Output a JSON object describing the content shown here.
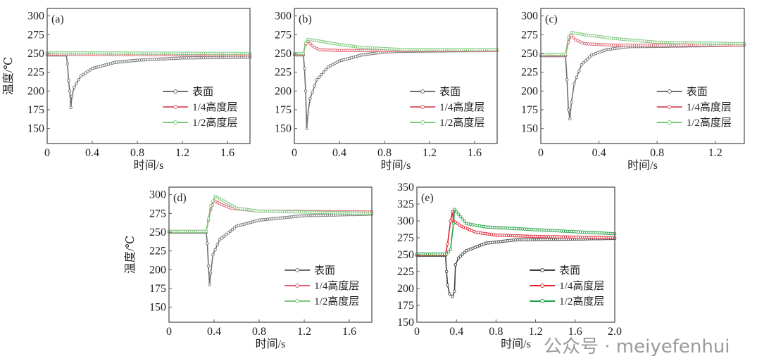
{
  "watermark": "公众号 · meiyefenhui",
  "chart_data": [
    {
      "type": "line",
      "panel": "(a)",
      "xlabel": "时间/s",
      "ylabel": "温度/℃",
      "xlim": [
        0,
        1.8
      ],
      "ylim": [
        130,
        310
      ],
      "xticks": [
        "0",
        "0.4",
        "0.8",
        "1.2",
        "1.6"
      ],
      "yticks": [
        "150",
        "175",
        "200",
        "225",
        "250",
        "275",
        "300"
      ],
      "series": [
        {
          "name": "表面",
          "color": "#6f6f6f",
          "points": [
            [
              0,
              248
            ],
            [
              0.17,
              248
            ],
            [
              0.18,
              236
            ],
            [
              0.19,
              214
            ],
            [
              0.2,
              200
            ],
            [
              0.21,
              178
            ],
            [
              0.22,
              193
            ],
            [
              0.24,
              205
            ],
            [
              0.3,
              220
            ],
            [
              0.4,
              230
            ],
            [
              0.6,
              238
            ],
            [
              0.8,
              241
            ],
            [
              1.2,
              244
            ],
            [
              1.8,
              245
            ]
          ]
        },
        {
          "name": "1/4高度层",
          "color": "#e0606e",
          "points": [
            [
              0,
              249
            ],
            [
              1.8,
              248
            ]
          ]
        },
        {
          "name": "1/2高度层",
          "color": "#7cc87c",
          "points": [
            [
              0,
              251
            ],
            [
              1.8,
              250
            ]
          ]
        }
      ]
    },
    {
      "type": "line",
      "panel": "(b)",
      "xlabel": "时间/s",
      "ylabel": "",
      "xlim": [
        0,
        1.8
      ],
      "ylim": [
        130,
        310
      ],
      "xticks": [
        "0",
        "0.4",
        "0.8",
        "1.2",
        "1.6"
      ],
      "yticks": [
        "150",
        "175",
        "200",
        "225",
        "250",
        "275",
        "300"
      ],
      "series": [
        {
          "name": "表面",
          "color": "#6f6f6f",
          "points": [
            [
              0,
              248
            ],
            [
              0.08,
              248
            ],
            [
              0.09,
              230
            ],
            [
              0.1,
              200
            ],
            [
              0.11,
              150
            ],
            [
              0.12,
              170
            ],
            [
              0.14,
              190
            ],
            [
              0.2,
              215
            ],
            [
              0.3,
              232
            ],
            [
              0.4,
              240
            ],
            [
              0.6,
              248
            ],
            [
              0.8,
              252
            ],
            [
              1.0,
              253
            ],
            [
              1.8,
              254
            ]
          ]
        },
        {
          "name": "1/4高度层",
          "color": "#e0606e",
          "points": [
            [
              0,
              249
            ],
            [
              0.08,
              249
            ],
            [
              0.1,
              262
            ],
            [
              0.12,
              266
            ],
            [
              0.16,
              260
            ],
            [
              0.22,
              255
            ],
            [
              0.4,
              254
            ],
            [
              1.8,
              254
            ]
          ]
        },
        {
          "name": "1/2高度层",
          "color": "#7cc87c",
          "points": [
            [
              0,
              250
            ],
            [
              0.08,
              250
            ],
            [
              0.1,
              264
            ],
            [
              0.12,
              269
            ],
            [
              0.2,
              267
            ],
            [
              0.4,
              262
            ],
            [
              0.6,
              258
            ],
            [
              1.0,
              255
            ],
            [
              1.8,
              255
            ]
          ]
        }
      ]
    },
    {
      "type": "line",
      "panel": "(c)",
      "xlabel": "时间/s",
      "ylabel": "",
      "xlim": [
        0,
        1.4
      ],
      "ylim": [
        130,
        310
      ],
      "xticks": [
        "0",
        "0.4",
        "0.8",
        "1.2"
      ],
      "yticks": [
        "150",
        "175",
        "200",
        "225",
        "250",
        "275",
        "300"
      ],
      "series": [
        {
          "name": "表面",
          "color": "#6f6f6f",
          "points": [
            [
              0,
              247
            ],
            [
              0.17,
              247
            ],
            [
              0.18,
              215
            ],
            [
              0.19,
              175
            ],
            [
              0.2,
              163
            ],
            [
              0.21,
              185
            ],
            [
              0.23,
              210
            ],
            [
              0.28,
              235
            ],
            [
              0.35,
              248
            ],
            [
              0.45,
              255
            ],
            [
              0.6,
              259
            ],
            [
              1.4,
              261
            ]
          ]
        },
        {
          "name": "1/4高度层",
          "color": "#e0606e",
          "points": [
            [
              0,
              248
            ],
            [
              0.17,
              248
            ],
            [
              0.19,
              265
            ],
            [
              0.21,
              274
            ],
            [
              0.24,
              268
            ],
            [
              0.3,
              263
            ],
            [
              0.5,
              261
            ],
            [
              1.4,
              261
            ]
          ]
        },
        {
          "name": "1/2高度层",
          "color": "#7cc87c",
          "points": [
            [
              0,
              249
            ],
            [
              0.17,
              249
            ],
            [
              0.19,
              272
            ],
            [
              0.21,
              278
            ],
            [
              0.3,
              275
            ],
            [
              0.5,
              270
            ],
            [
              0.8,
              265
            ],
            [
              1.4,
              263
            ]
          ]
        }
      ]
    },
    {
      "type": "line",
      "panel": "(d)",
      "xlabel": "时间/s",
      "ylabel": "温度/℃",
      "xlim": [
        0,
        1.8
      ],
      "ylim": [
        130,
        310
      ],
      "xticks": [
        "0",
        "0.4",
        "0.8",
        "1.2",
        "1.6"
      ],
      "yticks": [
        "150",
        "175",
        "200",
        "225",
        "250",
        "275",
        "300"
      ],
      "series": [
        {
          "name": "表面",
          "color": "#6f6f6f",
          "points": [
            [
              0,
              250
            ],
            [
              0.33,
              250
            ],
            [
              0.34,
              235
            ],
            [
              0.35,
              205
            ],
            [
              0.36,
              180
            ],
            [
              0.37,
              195
            ],
            [
              0.39,
              220
            ],
            [
              0.45,
              240
            ],
            [
              0.6,
              258
            ],
            [
              0.8,
              266
            ],
            [
              1.2,
              272
            ],
            [
              1.8,
              274
            ]
          ]
        },
        {
          "name": "1/4高度层",
          "color": "#e0606e",
          "points": [
            [
              0,
              251
            ],
            [
              0.33,
              251
            ],
            [
              0.37,
              280
            ],
            [
              0.4,
              292
            ],
            [
              0.45,
              288
            ],
            [
              0.55,
              282
            ],
            [
              0.8,
              278
            ],
            [
              1.8,
              277
            ]
          ]
        },
        {
          "name": "1/2高度层",
          "color": "#7cc87c",
          "points": [
            [
              0,
              251
            ],
            [
              0.33,
              251
            ],
            [
              0.37,
              285
            ],
            [
              0.41,
              298
            ],
            [
              0.47,
              293
            ],
            [
              0.6,
              282
            ],
            [
              0.8,
              278
            ],
            [
              1.8,
              275
            ]
          ]
        }
      ]
    },
    {
      "type": "line",
      "panel": "(e)",
      "xlabel": "时间/s",
      "ylabel": "",
      "xlim": [
        0,
        2.0
      ],
      "ylim": [
        150,
        350
      ],
      "xticks": [
        "0",
        "0.4",
        "0.8",
        "1.2",
        "1.6",
        "2.0"
      ],
      "yticks": [
        "150",
        "175",
        "200",
        "225",
        "250",
        "275",
        "300",
        "325",
        "350"
      ],
      "series": [
        {
          "name": "表面",
          "color": "#3b4242",
          "points": [
            [
              0,
              249
            ],
            [
              0.29,
              249
            ],
            [
              0.3,
              225
            ],
            [
              0.31,
              205
            ],
            [
              0.33,
              192
            ],
            [
              0.36,
              188
            ],
            [
              0.38,
              196
            ],
            [
              0.39,
              235
            ],
            [
              0.42,
              245
            ],
            [
              0.5,
              256
            ],
            [
              0.7,
              267
            ],
            [
              1.0,
              272
            ],
            [
              2.0,
              274
            ]
          ]
        },
        {
          "name": "1/4高度层",
          "color": "#e0202f",
          "points": [
            [
              0,
              250
            ],
            [
              0.29,
              250
            ],
            [
              0.31,
              266
            ],
            [
              0.34,
              300
            ],
            [
              0.36,
              314
            ],
            [
              0.37,
              300
            ],
            [
              0.45,
              292
            ],
            [
              0.6,
              283
            ],
            [
              0.8,
              279
            ],
            [
              1.2,
              277
            ],
            [
              2.0,
              275
            ]
          ]
        },
        {
          "name": "1/2高度层",
          "color": "#20a040",
          "points": [
            [
              0,
              251
            ],
            [
              0.3,
              251
            ],
            [
              0.34,
              258
            ],
            [
              0.37,
              296
            ],
            [
              0.38,
              317
            ],
            [
              0.42,
              310
            ],
            [
              0.5,
              296
            ],
            [
              0.7,
              291
            ],
            [
              1.2,
              287
            ],
            [
              2.0,
              281
            ]
          ]
        }
      ]
    }
  ]
}
